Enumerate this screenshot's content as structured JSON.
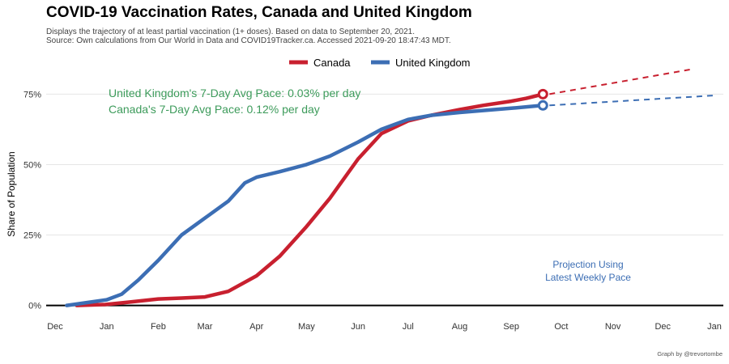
{
  "header": {
    "title": "COVID-19 Vaccination Rates, Canada and United Kingdom",
    "subtitle_line1": "Displays the trajectory of at least partial vaccination (1+ doses). Based on data to September 20, 2021.",
    "subtitle_line2": "Source: Own calculations from Our World in Data and COVID19Tracker.ca. Accessed 2021-09-20 18:47:43 MDT."
  },
  "caption": "Graph by @trevortombe",
  "colors": {
    "canada": "#c8202f",
    "uk": "#3c6eb4",
    "pace_text": "#3d9b5b",
    "projection_text": "#3c6eb4",
    "grid": "#e6e6e6",
    "axis": "#000000"
  },
  "chart_data": {
    "type": "line",
    "title": "COVID-19 Vaccination Rates, Canada and United Kingdom",
    "ylabel": "Share of Population",
    "xlabel": "",
    "x_axis_type": "date",
    "x_ticks": [
      "Dec",
      "Jan",
      "Feb",
      "Mar",
      "Apr",
      "May",
      "Jun",
      "Jul",
      "Aug",
      "Sep",
      "Oct",
      "Nov",
      "Dec",
      "Jan"
    ],
    "x_tick_dates": [
      "2020-12-01",
      "2021-01-01",
      "2021-02-01",
      "2021-03-01",
      "2021-04-01",
      "2021-05-01",
      "2021-06-01",
      "2021-07-01",
      "2021-08-01",
      "2021-09-01",
      "2021-10-01",
      "2021-11-01",
      "2021-12-01",
      "2022-01-01"
    ],
    "xlim": [
      "2020-12-01",
      "2022-01-01"
    ],
    "y_ticks": [
      "0%",
      "25%",
      "50%",
      "75%"
    ],
    "y_tick_values": [
      0,
      25,
      50,
      75
    ],
    "ylim": [
      -5,
      82
    ],
    "grid": true,
    "legend_position": "top",
    "series": [
      {
        "name": "Canada",
        "color": "#c8202f",
        "points": [
          [
            "2020-12-14",
            0.0
          ],
          [
            "2020-12-31",
            0.3
          ],
          [
            "2021-01-15",
            1.2
          ],
          [
            "2021-02-01",
            2.3
          ],
          [
            "2021-02-15",
            2.6
          ],
          [
            "2021-03-01",
            3.0
          ],
          [
            "2021-03-15",
            5.0
          ],
          [
            "2021-04-01",
            10.5
          ],
          [
            "2021-04-15",
            17.5
          ],
          [
            "2021-05-01",
            28.0
          ],
          [
            "2021-05-15",
            38.0
          ],
          [
            "2021-06-01",
            52.0
          ],
          [
            "2021-06-15",
            61.0
          ],
          [
            "2021-07-01",
            65.5
          ],
          [
            "2021-07-15",
            67.5
          ],
          [
            "2021-08-01",
            69.5
          ],
          [
            "2021-08-15",
            71.0
          ],
          [
            "2021-09-01",
            72.5
          ],
          [
            "2021-09-10",
            73.5
          ],
          [
            "2021-09-20",
            75.0
          ]
        ],
        "projection": [
          [
            "2021-09-20",
            75.0
          ],
          [
            "2021-12-20",
            84.0
          ]
        ]
      },
      {
        "name": "United Kingdom",
        "color": "#3c6eb4",
        "points": [
          [
            "2020-12-08",
            0.0
          ],
          [
            "2020-12-20",
            1.0
          ],
          [
            "2021-01-01",
            2.0
          ],
          [
            "2021-01-10",
            4.0
          ],
          [
            "2021-01-20",
            9.0
          ],
          [
            "2021-02-01",
            16.0
          ],
          [
            "2021-02-15",
            25.0
          ],
          [
            "2021-03-01",
            31.0
          ],
          [
            "2021-03-15",
            37.0
          ],
          [
            "2021-03-25",
            43.5
          ],
          [
            "2021-04-01",
            45.5
          ],
          [
            "2021-04-15",
            47.5
          ],
          [
            "2021-05-01",
            50.0
          ],
          [
            "2021-05-15",
            53.0
          ],
          [
            "2021-06-01",
            58.0
          ],
          [
            "2021-06-15",
            62.5
          ],
          [
            "2021-07-01",
            66.0
          ],
          [
            "2021-07-15",
            67.5
          ],
          [
            "2021-08-01",
            68.5
          ],
          [
            "2021-09-01",
            70.0
          ],
          [
            "2021-09-20",
            71.0
          ]
        ],
        "projection": [
          [
            "2021-09-20",
            71.0
          ],
          [
            "2021-12-31",
            74.5
          ]
        ]
      }
    ],
    "annotations": {
      "uk_pace": "United Kingdom's 7-Day Avg Pace: 0.03% per day",
      "canada_pace": "Canada's 7-Day Avg Pace: 0.12% per day",
      "projection_line1": "Projection Using",
      "projection_line2": "Latest Weekly Pace"
    }
  }
}
